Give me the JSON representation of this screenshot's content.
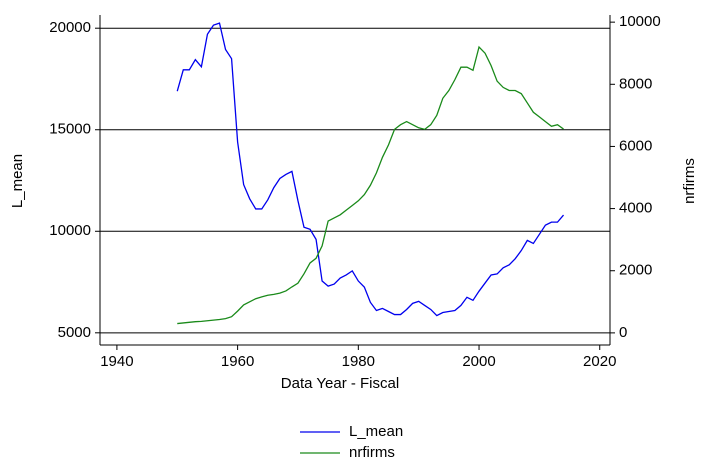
{
  "chart_data": {
    "type": "line",
    "x_label": "Data Year - Fiscal",
    "y_label": "L_mean",
    "y2_label": "nrfirms",
    "x": [
      1950,
      1951,
      1952,
      1953,
      1954,
      1955,
      1956,
      1957,
      1958,
      1959,
      1960,
      1961,
      1962,
      1963,
      1964,
      1965,
      1966,
      1967,
      1968,
      1969,
      1970,
      1971,
      1972,
      1973,
      1974,
      1975,
      1976,
      1977,
      1978,
      1979,
      1980,
      1981,
      1982,
      1983,
      1984,
      1985,
      1986,
      1987,
      1988,
      1989,
      1990,
      1991,
      1992,
      1993,
      1994,
      1995,
      1996,
      1997,
      1998,
      1999,
      2000,
      2001,
      2002,
      2003,
      2004,
      2005,
      2006,
      2007,
      2008,
      2009,
      2010,
      2011,
      2012,
      2013,
      2014
    ],
    "series": [
      {
        "name": "L_mean",
        "color": "#0000ee",
        "axis": "y",
        "values": [
          16900,
          17950,
          17950,
          18450,
          18100,
          19700,
          20150,
          20250,
          18950,
          18500,
          14400,
          12300,
          11600,
          11100,
          11100,
          11550,
          12150,
          12600,
          12800,
          12950,
          11500,
          10200,
          10100,
          9600,
          7550,
          7300,
          7400,
          7700,
          7850,
          8050,
          7550,
          7250,
          6500,
          6100,
          6200,
          6050,
          5900,
          5900,
          6150,
          6450,
          6550,
          6350,
          6150,
          5850,
          6000,
          6050,
          6100,
          6350,
          6750,
          6600,
          7050,
          7450,
          7850,
          7900,
          8200,
          8350,
          8650,
          9050,
          9550,
          9400,
          9850,
          10300,
          10450,
          10450,
          10800
        ]
      },
      {
        "name": "nrfirms",
        "color": "#1a8a1a",
        "axis": "y2",
        "values": [
          300,
          320,
          340,
          360,
          370,
          390,
          410,
          430,
          460,
          520,
          700,
          900,
          1000,
          1100,
          1160,
          1210,
          1240,
          1280,
          1350,
          1480,
          1600,
          1900,
          2250,
          2400,
          2800,
          3600,
          3700,
          3800,
          3950,
          4100,
          4250,
          4450,
          4750,
          5150,
          5650,
          6050,
          6550,
          6700,
          6800,
          6700,
          6600,
          6550,
          6700,
          7000,
          7550,
          7800,
          8150,
          8550,
          8550,
          8450,
          9200,
          9000,
          8600,
          8100,
          7900,
          7800,
          7800,
          7700,
          7400,
          7100,
          6950,
          6800,
          6650,
          6700,
          6560
        ]
      }
    ],
    "xlim": [
      1937.2,
      2021.7
    ],
    "xticks": [
      1940,
      1960,
      1980,
      2000,
      2020
    ],
    "ylim": [
      4400,
      20650
    ],
    "yticks": [
      5000,
      10000,
      15000,
      20000
    ],
    "y2lim": [
      -390,
      10230
    ],
    "y2ticks": [
      0,
      2000,
      4000,
      6000,
      8000,
      10000
    ],
    "grid": true,
    "legend": "bottom"
  }
}
